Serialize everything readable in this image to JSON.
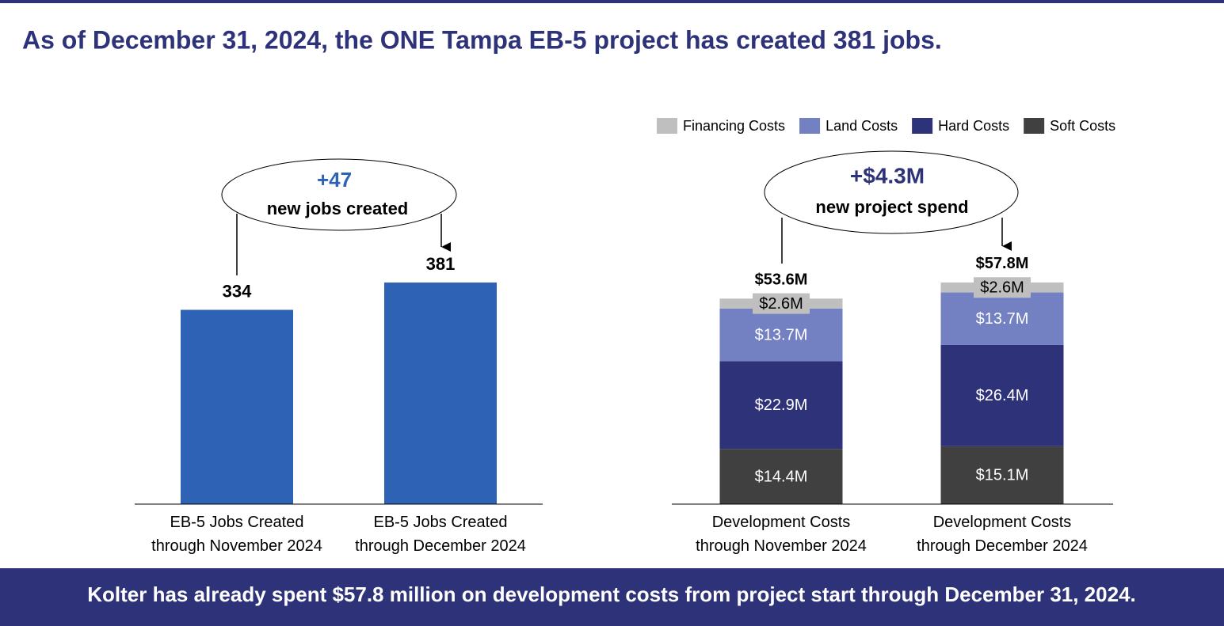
{
  "title": "As of December 31, 2024, the ONE Tampa EB-5 project has created 381 jobs.",
  "footer": "Kolter has already spent $57.8 million on development costs from project start through December 31, 2024.",
  "chart_data": [
    {
      "type": "bar",
      "categories": [
        "EB-5 Jobs Created\nthrough November 2024",
        "EB-5 Jobs Created\nthrough December 2024"
      ],
      "values": [
        334,
        381
      ],
      "color": "#2e62b4",
      "ylim": [
        0,
        468
      ],
      "annotation": [
        "+47",
        "new jobs created"
      ]
    },
    {
      "type": "stacked_bar",
      "categories": [
        "Development Costs\nthrough November 2024",
        "Development Costs\nthrough December 2024"
      ],
      "series": [
        {
          "name": "Financing Costs",
          "color": "#bfbfbf",
          "label_color": "#000000",
          "values": [
            2.6,
            2.6
          ],
          "value_labels": [
            "$2.6M",
            "$2.6M"
          ]
        },
        {
          "name": "Land Costs",
          "color": "#7380c2",
          "label_color": "#ffffff",
          "values": [
            13.7,
            13.7
          ],
          "value_labels": [
            "$13.7M",
            "$13.7M"
          ]
        },
        {
          "name": "Hard Costs",
          "color": "#2e3278",
          "label_color": "#ffffff",
          "values": [
            22.9,
            26.4
          ],
          "value_labels": [
            "$22.9M",
            "$26.4M"
          ]
        },
        {
          "name": "Soft Costs",
          "color": "#404040",
          "label_color": "#ffffff",
          "values": [
            14.4,
            15.1
          ],
          "value_labels": [
            "$14.4M",
            "$15.1M"
          ]
        }
      ],
      "totals": {
        "values": [
          53.6,
          57.8
        ],
        "value_labels": [
          "$53.6M",
          "$57.8M"
        ]
      },
      "ylim": [
        0,
        71
      ],
      "annotation": [
        "+$4.3M",
        "new project spend"
      ]
    }
  ]
}
